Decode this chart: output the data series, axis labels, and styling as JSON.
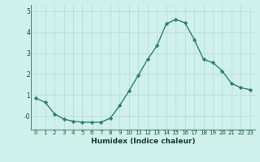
{
  "x": [
    0,
    1,
    2,
    3,
    4,
    5,
    6,
    7,
    8,
    9,
    10,
    11,
    12,
    13,
    14,
    15,
    16,
    17,
    18,
    19,
    20,
    21,
    22,
    23
  ],
  "y": [
    0.85,
    0.65,
    0.1,
    -0.15,
    -0.25,
    -0.3,
    -0.3,
    -0.3,
    -0.1,
    0.5,
    1.2,
    1.95,
    2.7,
    3.35,
    4.4,
    4.6,
    4.45,
    3.65,
    2.7,
    2.55,
    2.15,
    1.55,
    1.35,
    1.25
  ],
  "line_color": "#2e7f6e",
  "marker": "D",
  "marker_size": 2.2,
  "bg_color": "#cff0eb",
  "grid_color": "#b8ddd8",
  "xlabel": "Humidex (Indice chaleur)",
  "xlim": [
    -0.5,
    23.5
  ],
  "ylim": [
    -0.65,
    5.3
  ],
  "yticks": [
    0,
    1,
    2,
    3,
    4,
    5
  ],
  "ytick_labels": [
    "-0",
    "1",
    "2",
    "3",
    "4",
    "5"
  ],
  "xticks": [
    0,
    1,
    2,
    3,
    4,
    5,
    6,
    7,
    8,
    9,
    10,
    11,
    12,
    13,
    14,
    15,
    16,
    17,
    18,
    19,
    20,
    21,
    22,
    23
  ]
}
